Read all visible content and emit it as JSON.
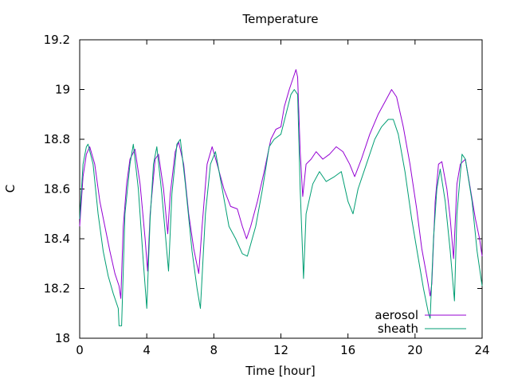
{
  "chart_data": {
    "type": "line",
    "title": "Temperature",
    "xlabel": "Time [hour]",
    "ylabel": "C",
    "xlim": [
      0,
      24
    ],
    "ylim": [
      18,
      19.2
    ],
    "xticks": [
      0,
      4,
      8,
      12,
      16,
      20,
      24
    ],
    "yticks": [
      18,
      18.2,
      18.4,
      18.6,
      18.8,
      19,
      19.2
    ],
    "ytick_labels": [
      "18",
      "18.2",
      "18.4",
      "18.6",
      "18.8",
      "19",
      "19.2"
    ],
    "grid": false,
    "legend_position": "bottom-right",
    "series": [
      {
        "name": "aerosol",
        "color": "#9400d3",
        "points": [
          [
            0.0,
            18.45
          ],
          [
            0.2,
            18.65
          ],
          [
            0.4,
            18.74
          ],
          [
            0.6,
            18.77
          ],
          [
            0.9,
            18.7
          ],
          [
            1.2,
            18.55
          ],
          [
            1.5,
            18.45
          ],
          [
            1.8,
            18.35
          ],
          [
            2.1,
            18.26
          ],
          [
            2.35,
            18.21
          ],
          [
            2.45,
            18.16
          ],
          [
            2.6,
            18.45
          ],
          [
            2.8,
            18.62
          ],
          [
            3.0,
            18.72
          ],
          [
            3.3,
            18.76
          ],
          [
            3.6,
            18.62
          ],
          [
            3.9,
            18.4
          ],
          [
            4.05,
            18.27
          ],
          [
            4.2,
            18.5
          ],
          [
            4.5,
            18.72
          ],
          [
            4.7,
            18.74
          ],
          [
            5.0,
            18.6
          ],
          [
            5.25,
            18.42
          ],
          [
            5.4,
            18.58
          ],
          [
            5.7,
            18.75
          ],
          [
            5.9,
            18.79
          ],
          [
            6.2,
            18.7
          ],
          [
            6.5,
            18.5
          ],
          [
            6.8,
            18.36
          ],
          [
            7.1,
            18.26
          ],
          [
            7.3,
            18.45
          ],
          [
            7.6,
            18.7
          ],
          [
            7.9,
            18.77
          ],
          [
            8.2,
            18.7
          ],
          [
            8.6,
            18.6
          ],
          [
            9.0,
            18.53
          ],
          [
            9.4,
            18.52
          ],
          [
            9.7,
            18.45
          ],
          [
            9.95,
            18.4
          ],
          [
            10.2,
            18.45
          ],
          [
            10.6,
            18.55
          ],
          [
            11.0,
            18.67
          ],
          [
            11.4,
            18.8
          ],
          [
            11.7,
            18.84
          ],
          [
            12.0,
            18.85
          ],
          [
            12.2,
            18.93
          ],
          [
            12.5,
            19.0
          ],
          [
            12.7,
            19.04
          ],
          [
            12.9,
            19.08
          ],
          [
            13.0,
            19.05
          ],
          [
            13.15,
            18.75
          ],
          [
            13.3,
            18.57
          ],
          [
            13.5,
            18.7
          ],
          [
            13.8,
            18.72
          ],
          [
            14.1,
            18.75
          ],
          [
            14.5,
            18.72
          ],
          [
            14.9,
            18.74
          ],
          [
            15.3,
            18.77
          ],
          [
            15.7,
            18.75
          ],
          [
            16.1,
            18.7
          ],
          [
            16.4,
            18.65
          ],
          [
            16.8,
            18.72
          ],
          [
            17.3,
            18.82
          ],
          [
            17.8,
            18.9
          ],
          [
            18.2,
            18.95
          ],
          [
            18.6,
            19.0
          ],
          [
            18.9,
            18.97
          ],
          [
            19.3,
            18.85
          ],
          [
            19.7,
            18.7
          ],
          [
            20.1,
            18.52
          ],
          [
            20.4,
            18.36
          ],
          [
            20.7,
            18.25
          ],
          [
            20.9,
            18.17
          ],
          [
            21.0,
            18.22
          ],
          [
            21.2,
            18.55
          ],
          [
            21.4,
            18.7
          ],
          [
            21.6,
            18.71
          ],
          [
            21.9,
            18.6
          ],
          [
            22.1,
            18.48
          ],
          [
            22.3,
            18.32
          ],
          [
            22.5,
            18.62
          ],
          [
            22.7,
            18.7
          ],
          [
            23.0,
            18.72
          ],
          [
            23.3,
            18.6
          ],
          [
            23.6,
            18.48
          ],
          [
            23.85,
            18.4
          ],
          [
            24.0,
            18.33
          ]
        ]
      },
      {
        "name": "sheath",
        "color": "#009e73",
        "points": [
          [
            0.0,
            18.48
          ],
          [
            0.2,
            18.7
          ],
          [
            0.4,
            18.77
          ],
          [
            0.5,
            18.78
          ],
          [
            0.8,
            18.7
          ],
          [
            1.1,
            18.5
          ],
          [
            1.4,
            18.35
          ],
          [
            1.7,
            18.25
          ],
          [
            2.0,
            18.18
          ],
          [
            2.3,
            18.12
          ],
          [
            2.35,
            18.05
          ],
          [
            2.5,
            18.05
          ],
          [
            2.7,
            18.5
          ],
          [
            3.0,
            18.7
          ],
          [
            3.2,
            18.78
          ],
          [
            3.5,
            18.6
          ],
          [
            3.8,
            18.3
          ],
          [
            4.0,
            18.12
          ],
          [
            4.2,
            18.48
          ],
          [
            4.4,
            18.7
          ],
          [
            4.6,
            18.77
          ],
          [
            4.9,
            18.58
          ],
          [
            5.3,
            18.27
          ],
          [
            5.5,
            18.58
          ],
          [
            5.8,
            18.78
          ],
          [
            6.0,
            18.8
          ],
          [
            6.3,
            18.62
          ],
          [
            6.7,
            18.35
          ],
          [
            7.0,
            18.2
          ],
          [
            7.2,
            18.12
          ],
          [
            7.5,
            18.5
          ],
          [
            7.8,
            18.7
          ],
          [
            8.1,
            18.75
          ],
          [
            8.5,
            18.6
          ],
          [
            8.9,
            18.45
          ],
          [
            9.3,
            18.4
          ],
          [
            9.7,
            18.34
          ],
          [
            10.0,
            18.33
          ],
          [
            10.5,
            18.45
          ],
          [
            10.9,
            18.6
          ],
          [
            11.3,
            18.77
          ],
          [
            11.6,
            18.8
          ],
          [
            12.0,
            18.82
          ],
          [
            12.3,
            18.9
          ],
          [
            12.6,
            18.98
          ],
          [
            12.8,
            19.0
          ],
          [
            13.0,
            18.98
          ],
          [
            13.15,
            18.6
          ],
          [
            13.35,
            18.24
          ],
          [
            13.5,
            18.5
          ],
          [
            13.9,
            18.62
          ],
          [
            14.3,
            18.67
          ],
          [
            14.7,
            18.63
          ],
          [
            15.2,
            18.65
          ],
          [
            15.6,
            18.67
          ],
          [
            16.0,
            18.55
          ],
          [
            16.3,
            18.5
          ],
          [
            16.6,
            18.6
          ],
          [
            17.1,
            18.7
          ],
          [
            17.6,
            18.8
          ],
          [
            18.0,
            18.85
          ],
          [
            18.4,
            18.88
          ],
          [
            18.7,
            18.88
          ],
          [
            19.0,
            18.82
          ],
          [
            19.4,
            18.67
          ],
          [
            19.8,
            18.48
          ],
          [
            20.2,
            18.32
          ],
          [
            20.5,
            18.2
          ],
          [
            20.8,
            18.1
          ],
          [
            20.9,
            18.08
          ],
          [
            21.1,
            18.4
          ],
          [
            21.3,
            18.6
          ],
          [
            21.5,
            18.68
          ],
          [
            21.8,
            18.55
          ],
          [
            22.1,
            18.35
          ],
          [
            22.35,
            18.15
          ],
          [
            22.5,
            18.5
          ],
          [
            22.8,
            18.74
          ],
          [
            23.0,
            18.72
          ],
          [
            23.4,
            18.55
          ],
          [
            23.7,
            18.35
          ],
          [
            24.0,
            18.21
          ]
        ]
      }
    ]
  }
}
